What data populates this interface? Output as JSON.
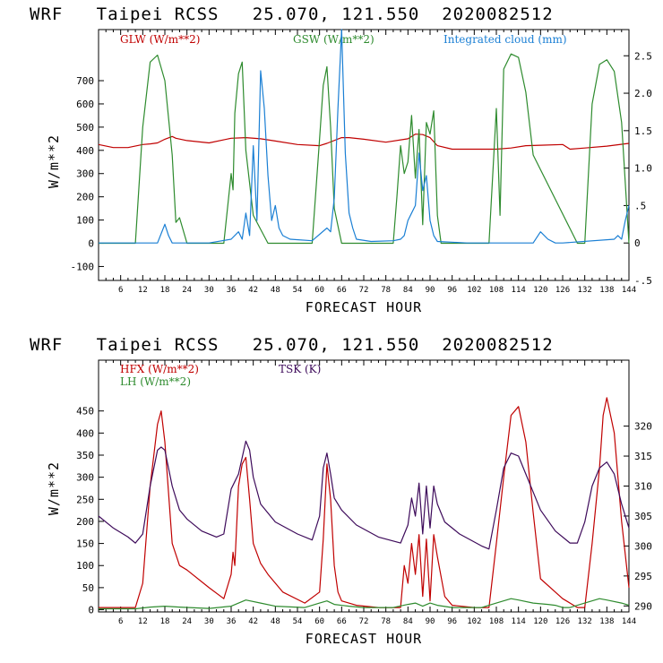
{
  "colors": {
    "red": "#c00000",
    "green": "#2e8b2e",
    "blue": "#1a7fd4",
    "purple": "#3d0a5a"
  },
  "chart_data": [
    {
      "type": "line",
      "title": "WRF   Taipei RCSS   25.070, 121.550  2020082512",
      "xlabel": "FORECAST HOUR",
      "ylabel": "W/m**2",
      "xlim": [
        0,
        144
      ],
      "ylim": [
        -160,
        920
      ],
      "y2lim": [
        -0.5,
        2.85
      ],
      "xticks": [
        6,
        12,
        18,
        24,
        30,
        36,
        42,
        48,
        54,
        60,
        66,
        72,
        78,
        84,
        90,
        96,
        102,
        108,
        114,
        120,
        126,
        132,
        138,
        144
      ],
      "yticks": [
        -100,
        0,
        100,
        200,
        300,
        400,
        500,
        600,
        700
      ],
      "ytick_labels": [
        "-100",
        "0",
        "100",
        "200",
        "300",
        "400",
        "500",
        "600",
        "700"
      ],
      "y2ticks": [
        -0.5,
        0,
        0.5,
        1.0,
        1.5,
        2.0,
        2.5
      ],
      "y2tick_labels": [
        "-.5",
        "0",
        ".5",
        "1.0",
        "1.5",
        "2.0",
        "2.5"
      ],
      "legend": [
        {
          "label": "GLW (W/m**2)",
          "color": "red"
        },
        {
          "label": "GSW (W/m**2)",
          "color": "green"
        },
        {
          "label": "Integrated cloud (mm)",
          "color": "blue"
        }
      ],
      "series": [
        {
          "name": "GLW",
          "color": "red",
          "axis": "left",
          "x": [
            0,
            4,
            8,
            12,
            14,
            16,
            18,
            20,
            21,
            24,
            30,
            36,
            40,
            44,
            48,
            54,
            60,
            62,
            66,
            68,
            72,
            78,
            84,
            86,
            88,
            90,
            92,
            96,
            102,
            108,
            112,
            116,
            120,
            126,
            128,
            132,
            138,
            144
          ],
          "y": [
            425,
            412,
            412,
            425,
            428,
            432,
            448,
            460,
            452,
            442,
            432,
            452,
            455,
            450,
            440,
            425,
            420,
            430,
            455,
            455,
            448,
            435,
            450,
            470,
            468,
            455,
            420,
            405,
            405,
            405,
            410,
            420,
            422,
            425,
            405,
            410,
            418,
            430
          ]
        },
        {
          "name": "GSW",
          "color": "green",
          "axis": "left",
          "x": [
            0,
            10,
            12,
            14,
            16,
            18,
            20,
            21,
            22,
            24,
            34,
            36,
            36.5,
            37,
            38,
            39,
            40,
            42,
            44,
            46,
            58,
            60,
            61,
            62,
            63,
            64,
            66,
            80,
            81,
            82,
            83,
            84,
            85,
            86,
            87,
            88,
            89,
            90,
            91,
            92,
            93,
            94,
            96,
            106,
            108,
            109,
            110,
            112,
            114,
            116,
            118,
            130,
            132,
            134,
            136,
            138,
            140,
            142,
            144
          ],
          "y": [
            0,
            0,
            500,
            780,
            810,
            700,
            380,
            90,
            110,
            0,
            0,
            300,
            230,
            560,
            730,
            780,
            400,
            120,
            60,
            0,
            0,
            450,
            680,
            760,
            500,
            150,
            0,
            0,
            200,
            420,
            300,
            350,
            550,
            280,
            490,
            80,
            520,
            470,
            570,
            120,
            0,
            0,
            0,
            0,
            580,
            120,
            750,
            815,
            800,
            650,
            380,
            0,
            0,
            600,
            770,
            790,
            740,
            520,
            0
          ]
        },
        {
          "name": "Integrated cloud",
          "color": "blue",
          "axis": "right",
          "x": [
            0,
            16,
            18,
            19,
            20,
            22,
            30,
            36,
            38,
            39,
            40,
            41,
            42,
            43,
            44,
            45,
            46,
            47,
            48,
            49,
            50,
            52,
            58,
            62,
            63,
            64,
            65,
            66,
            67,
            68,
            69,
            70,
            74,
            80,
            82,
            83,
            84,
            85,
            86,
            87,
            88,
            89,
            90,
            91,
            92,
            100,
            118,
            120,
            122,
            124,
            126,
            140,
            141,
            142,
            143,
            144
          ],
          "y": [
            0,
            0,
            0.25,
            0.1,
            0,
            0,
            0,
            0.05,
            0.15,
            0.05,
            0.4,
            0.1,
            1.3,
            0.3,
            2.3,
            1.8,
            0.9,
            0.3,
            0.5,
            0.2,
            0.1,
            0.05,
            0.03,
            0.2,
            0.15,
            0.6,
            1.8,
            2.85,
            1.2,
            0.4,
            0.2,
            0.05,
            0.02,
            0.03,
            0.05,
            0.1,
            0.3,
            0.4,
            0.5,
            1.2,
            0.7,
            0.9,
            0.3,
            0.1,
            0.02,
            0,
            0,
            0.15,
            0.05,
            0,
            0,
            0.05,
            0.1,
            0.05,
            0.3,
            0.5
          ]
        }
      ]
    },
    {
      "type": "line",
      "title": "WRF   Taipei RCSS   25.070, 121.550  2020082512",
      "xlabel": "FORECAST HOUR",
      "ylabel": "W/m**2",
      "xlim": [
        0,
        144
      ],
      "ylim": [
        -5,
        565
      ],
      "y2lim": [
        289,
        331
      ],
      "xticks": [
        6,
        12,
        18,
        24,
        30,
        36,
        42,
        48,
        54,
        60,
        66,
        72,
        78,
        84,
        90,
        96,
        102,
        108,
        114,
        120,
        126,
        132,
        138,
        144
      ],
      "yticks": [
        0,
        50,
        100,
        150,
        200,
        250,
        300,
        350,
        400,
        450
      ],
      "ytick_labels": [
        "0",
        "50",
        "100",
        "150",
        "200",
        "250",
        "300",
        "350",
        "400",
        "450"
      ],
      "y2ticks": [
        290,
        295,
        300,
        305,
        310,
        315,
        320
      ],
      "y2tick_labels": [
        "290",
        "295",
        "300",
        "305",
        "310",
        "315",
        "320"
      ],
      "legend": [
        {
          "label": "HFX (W/m**2)",
          "color": "red"
        },
        {
          "label": "TSK (K)",
          "color": "purple"
        },
        {
          "label": "LH  (W/m**2)",
          "color": "green"
        }
      ],
      "series": [
        {
          "name": "HFX",
          "color": "red",
          "axis": "left",
          "x": [
            0,
            10,
            12,
            14,
            16,
            17,
            18,
            20,
            22,
            24,
            30,
            34,
            36,
            36.5,
            37,
            38,
            39,
            40,
            41,
            42,
            44,
            46,
            50,
            56,
            60,
            61,
            62,
            63,
            64,
            65,
            66,
            70,
            76,
            82,
            83,
            84,
            85,
            86,
            87,
            88,
            89,
            90,
            91,
            92,
            94,
            96,
            102,
            106,
            108,
            110,
            112,
            114,
            116,
            118,
            120,
            124,
            126,
            128,
            130,
            132,
            134,
            136,
            137,
            138,
            140,
            142,
            144
          ],
          "y": [
            5,
            5,
            60,
            280,
            420,
            450,
            380,
            150,
            100,
            90,
            50,
            25,
            80,
            130,
            100,
            280,
            330,
            345,
            250,
            150,
            105,
            80,
            40,
            15,
            40,
            160,
            330,
            250,
            100,
            40,
            20,
            10,
            5,
            5,
            100,
            60,
            150,
            80,
            170,
            30,
            160,
            20,
            170,
            120,
            30,
            10,
            5,
            5,
            150,
            300,
            440,
            460,
            380,
            220,
            70,
            40,
            25,
            15,
            5,
            5,
            150,
            320,
            440,
            480,
            400,
            200,
            50
          ]
        },
        {
          "name": "TSK",
          "color": "purple",
          "axis": "right",
          "x": [
            0,
            4,
            8,
            10,
            12,
            14,
            16,
            17,
            18,
            20,
            22,
            24,
            28,
            32,
            34,
            36,
            38,
            40,
            41,
            42,
            44,
            48,
            54,
            58,
            60,
            61,
            62,
            63,
            64,
            66,
            70,
            76,
            82,
            84,
            85,
            86,
            87,
            88,
            89,
            90,
            91,
            92,
            94,
            98,
            104,
            106,
            108,
            110,
            112,
            114,
            116,
            118,
            120,
            124,
            128,
            130,
            132,
            134,
            136,
            138,
            140,
            142,
            144
          ],
          "y": [
            305,
            303,
            301.5,
            300.5,
            302,
            310,
            316,
            316.5,
            316,
            310,
            306,
            304.5,
            302.5,
            301.5,
            302,
            309.5,
            312,
            317.5,
            316,
            311.5,
            307,
            304,
            302,
            301,
            305,
            313,
            315.5,
            312,
            308,
            306,
            303.5,
            301.5,
            300.5,
            303.5,
            308,
            305,
            310.5,
            302,
            310,
            303,
            310,
            307,
            304,
            302,
            300,
            299.5,
            306,
            313,
            315.5,
            315,
            312,
            309,
            306,
            302.5,
            300.5,
            300.5,
            304,
            310,
            313,
            314,
            312,
            307,
            303
          ]
        },
        {
          "name": "LH",
          "color": "green",
          "axis": "left",
          "x": [
            0,
            10,
            14,
            18,
            22,
            30,
            36,
            40,
            44,
            48,
            56,
            60,
            62,
            64,
            68,
            72,
            80,
            84,
            86,
            88,
            90,
            92,
            96,
            104,
            108,
            112,
            114,
            118,
            122,
            124,
            126,
            128,
            132,
            136,
            138,
            142,
            144
          ],
          "y": [
            2,
            2,
            6,
            8,
            6,
            3,
            8,
            22,
            15,
            8,
            5,
            15,
            20,
            12,
            8,
            5,
            5,
            12,
            15,
            8,
            15,
            10,
            5,
            5,
            15,
            25,
            22,
            15,
            12,
            10,
            5,
            5,
            15,
            25,
            22,
            15,
            10
          ]
        }
      ]
    }
  ]
}
